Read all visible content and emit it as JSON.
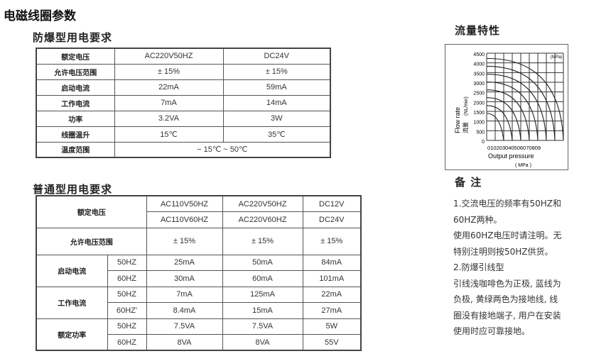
{
  "title": "电磁线圈参数",
  "explosion_proof": {
    "heading": "防爆型用电要求",
    "rows": [
      {
        "label": "额定电压",
        "ac": "AC220V50HZ",
        "dc": "DC24V"
      },
      {
        "label": "允许电压范围",
        "ac": "± 15%",
        "dc": "± 15%"
      },
      {
        "label": "启动电流",
        "ac": "22mA",
        "dc": "59mA"
      },
      {
        "label": "工作电流",
        "ac": "7mA",
        "dc": "14mA"
      },
      {
        "label": "功率",
        "ac": "3.2VA",
        "dc": "3W"
      },
      {
        "label": "线圈温升",
        "ac": "15℃",
        "dc": "35℃"
      }
    ],
    "temp_label": "温度范围",
    "temp_value": "− 15℃ ~ 50℃"
  },
  "standard": {
    "heading": "普通型用电要求",
    "voltage_label": "额定电压",
    "voltages": [
      [
        "AC110V50HZ",
        "AC110V60HZ"
      ],
      [
        "AC220V50HZ",
        "AC220V60HZ"
      ],
      [
        "DC12V",
        "DC24V"
      ]
    ],
    "range_label": "允许电压范围",
    "range": [
      "± 15%",
      "± 15%",
      "± 15%"
    ],
    "groups": [
      {
        "label": "启动电流",
        "rows": [
          {
            "freq": "50HZ",
            "v": [
              "25mA",
              "50mA",
              "84mA"
            ]
          },
          {
            "freq": "60HZ",
            "v": [
              "30mA",
              "60mA",
              "101mA"
            ]
          }
        ]
      },
      {
        "label": "工作电流",
        "rows": [
          {
            "freq": "50HZ",
            "v": [
              "7mA",
              "125mA",
              "22mA"
            ]
          },
          {
            "freq": "60HZ'",
            "v": [
              "8.4mA",
              "15mA",
              "27mA"
            ]
          }
        ]
      },
      {
        "label": "额定功率",
        "rows": [
          {
            "freq": "50HZ",
            "v": [
              "7.5VA",
              "7.5VA",
              "5W"
            ]
          },
          {
            "freq": "60HZ",
            "v": [
              "8VA",
              "8VA",
              "55V"
            ]
          }
        ]
      }
    ]
  },
  "flow": {
    "heading": "流量特性",
    "y_ticks": [
      "4500",
      "4000",
      "3500",
      "3000",
      "2500",
      "2000",
      "1500",
      "1000",
      "500",
      "0"
    ],
    "y_label": "Flow rate",
    "y_label_cn": "流量",
    "y_unit": "(NL/min)",
    "x_ticks": "010203040506070809",
    "x_label": "Output pressure",
    "x_unit": "( MPa )",
    "corner_unit": "(MPa)"
  },
  "notes": {
    "heading": "备 注",
    "lines": [
      "1.交流电压的频率有50HZ和",
      "60HZ两种。",
      "使用60HZ电压时请注明。无",
      "特别注明则按50HZ供货。",
      "2.防爆引线型",
      "引线浅咖啡色为正极, 蓝线为",
      "负极, 黄绿两色为接地线, 线",
      "圈没有接地端子, 用户在安装",
      "使用时应可靠接地。"
    ]
  }
}
